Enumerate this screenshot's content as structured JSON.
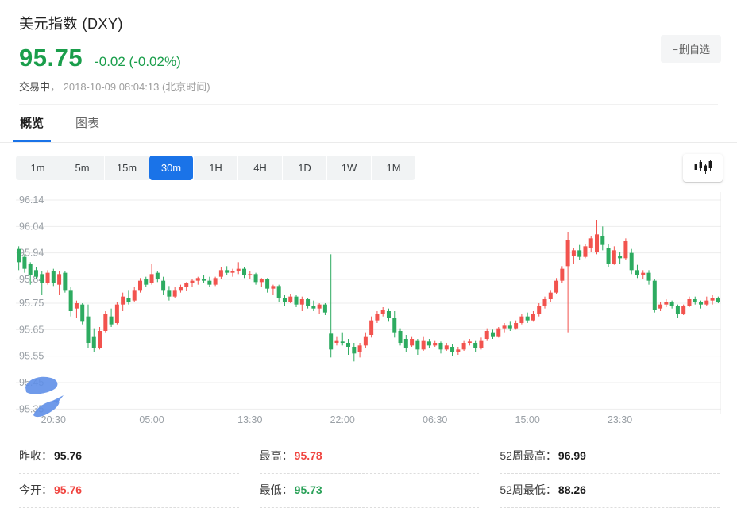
{
  "header": {
    "title": "美元指数 (DXY)",
    "price": "95.75",
    "change": "-0.02 (-0.02%)",
    "status_state": "交易中",
    "status_time": "， 2018-10-09 08:04:13 (北京时间)",
    "watchlist_button": "删自选"
  },
  "icons": {
    "minus": "−",
    "chart_type": "candlestick-chart-icon"
  },
  "tabs": [
    {
      "label": "概览",
      "active": true
    },
    {
      "label": "图表",
      "active": false
    }
  ],
  "toolbar": {
    "intervals": [
      "1m",
      "5m",
      "15m",
      "30m",
      "1H",
      "4H",
      "1D",
      "1W",
      "1M"
    ],
    "active_interval": "30m"
  },
  "stats": {
    "rows": [
      [
        {
          "label": "昨收：",
          "value": "95.76",
          "color": "neutral"
        },
        {
          "label": "最高：",
          "value": "95.78",
          "color": "up"
        },
        {
          "label": "52周最高：",
          "value": "96.99",
          "color": "neutral"
        }
      ],
      [
        {
          "label": "今开：",
          "value": "95.76",
          "color": "up"
        },
        {
          "label": "最低：",
          "value": "95.73",
          "color": "down"
        },
        {
          "label": "52周最低：",
          "value": "88.26",
          "color": "neutral"
        }
      ]
    ]
  },
  "colors": {
    "price_green": "#1a9e4b",
    "accent_blue": "#1a73e8",
    "up_red": "#f2534e",
    "down_green": "#2dab60",
    "grid": "#ededed",
    "axis_text": "#9aa0a6",
    "scribble_blue": "#5f8fe8"
  },
  "chart_data": {
    "type": "candlestick",
    "symbol": "DXY",
    "interval": "30m",
    "y_ticks": [
      96.14,
      96.04,
      95.94,
      95.84,
      95.75,
      95.65,
      95.55,
      95.45,
      95.35
    ],
    "y_range": [
      95.33,
      96.17
    ],
    "x_ticks": [
      {
        "i": 6,
        "label": "20:30"
      },
      {
        "i": 23,
        "label": "05:00"
      },
      {
        "i": 40,
        "label": "13:30"
      },
      {
        "i": 56,
        "label": "22:00"
      },
      {
        "i": 72,
        "label": "06:30"
      },
      {
        "i": 88,
        "label": "15:00"
      },
      {
        "i": 104,
        "label": "23:30"
      }
    ],
    "up_color": "#f2534e",
    "down_color": "#2dab60",
    "candles": [
      [
        95.955,
        95.965,
        95.875,
        95.905
      ],
      [
        95.925,
        95.935,
        95.865,
        95.88
      ],
      [
        95.9,
        95.905,
        95.82,
        95.855
      ],
      [
        95.875,
        95.885,
        95.84,
        95.85
      ],
      [
        95.86,
        95.87,
        95.78,
        95.825
      ],
      [
        95.825,
        95.875,
        95.82,
        95.865
      ],
      [
        95.87,
        95.88,
        95.815,
        95.825
      ],
      [
        95.82,
        95.87,
        95.78,
        95.86
      ],
      [
        95.865,
        95.87,
        95.79,
        95.8
      ],
      [
        95.8,
        95.81,
        95.7,
        95.72
      ],
      [
        95.73,
        95.76,
        95.695,
        95.75
      ],
      [
        95.745,
        95.75,
        95.67,
        95.68
      ],
      [
        95.7,
        95.745,
        95.58,
        95.6
      ],
      [
        95.625,
        95.655,
        95.565,
        95.58
      ],
      [
        95.58,
        95.66,
        95.575,
        95.645
      ],
      [
        95.645,
        95.72,
        95.64,
        95.71
      ],
      [
        95.7,
        95.73,
        95.66,
        95.67
      ],
      [
        95.675,
        95.755,
        95.67,
        95.745
      ],
      [
        95.745,
        95.79,
        95.72,
        95.775
      ],
      [
        95.77,
        95.8,
        95.745,
        95.755
      ],
      [
        95.76,
        95.81,
        95.755,
        95.8
      ],
      [
        95.8,
        95.845,
        95.79,
        95.835
      ],
      [
        95.84,
        95.85,
        95.81,
        95.82
      ],
      [
        95.825,
        95.9,
        95.82,
        95.86
      ],
      [
        95.865,
        95.87,
        95.83,
        95.84
      ],
      [
        95.835,
        95.85,
        95.78,
        95.8
      ],
      [
        95.8,
        95.815,
        95.76,
        95.775
      ],
      [
        95.775,
        95.81,
        95.77,
        95.8
      ],
      [
        95.8,
        95.82,
        95.79,
        95.81
      ],
      [
        95.81,
        95.83,
        95.795,
        95.825
      ],
      [
        95.825,
        95.84,
        95.81,
        95.835
      ],
      [
        95.835,
        95.85,
        95.82,
        95.845
      ],
      [
        95.84,
        95.855,
        95.825,
        95.835
      ],
      [
        95.835,
        95.85,
        95.81,
        95.82
      ],
      [
        95.82,
        95.85,
        95.815,
        95.845
      ],
      [
        95.85,
        95.885,
        95.84,
        95.875
      ],
      [
        95.875,
        95.89,
        95.855,
        95.865
      ],
      [
        95.865,
        95.88,
        95.85,
        95.87
      ],
      [
        95.87,
        95.905,
        95.86,
        95.88
      ],
      [
        95.88,
        95.885,
        95.845,
        95.855
      ],
      [
        95.855,
        95.87,
        95.84,
        95.86
      ],
      [
        95.86,
        95.865,
        95.82,
        95.83
      ],
      [
        95.83,
        95.845,
        95.81,
        95.84
      ],
      [
        95.84,
        95.845,
        95.79,
        95.805
      ],
      [
        95.805,
        95.82,
        95.78,
        95.815
      ],
      [
        95.815,
        95.82,
        95.755,
        95.77
      ],
      [
        95.77,
        95.78,
        95.74,
        95.755
      ],
      [
        95.755,
        95.785,
        95.75,
        95.775
      ],
      [
        95.775,
        95.78,
        95.735,
        95.745
      ],
      [
        95.745,
        95.775,
        95.72,
        95.765
      ],
      [
        95.765,
        95.77,
        95.73,
        95.74
      ],
      [
        95.74,
        95.76,
        95.72,
        95.73
      ],
      [
        95.73,
        95.75,
        95.71,
        95.745
      ],
      [
        95.745,
        95.75,
        95.705,
        95.715
      ],
      [
        95.635,
        95.935,
        95.545,
        95.575
      ],
      [
        95.6,
        95.625,
        95.59,
        95.61
      ],
      [
        95.605,
        95.64,
        95.59,
        95.6
      ],
      [
        95.6,
        95.615,
        95.555,
        95.585
      ],
      [
        95.585,
        95.6,
        95.53,
        95.56
      ],
      [
        95.565,
        95.6,
        95.545,
        95.59
      ],
      [
        95.59,
        95.64,
        95.58,
        95.625
      ],
      [
        95.63,
        95.7,
        95.62,
        95.685
      ],
      [
        95.685,
        95.72,
        95.675,
        95.71
      ],
      [
        95.71,
        95.735,
        95.7,
        95.725
      ],
      [
        95.72,
        95.73,
        95.68,
        95.695
      ],
      [
        95.695,
        95.72,
        95.62,
        95.64
      ],
      [
        95.645,
        95.655,
        95.59,
        95.6
      ],
      [
        95.615,
        95.63,
        95.565,
        95.58
      ],
      [
        95.59,
        95.625,
        95.585,
        95.615
      ],
      [
        95.61,
        95.615,
        95.555,
        95.575
      ],
      [
        95.575,
        95.625,
        95.57,
        95.61
      ],
      [
        95.605,
        95.615,
        95.58,
        95.59
      ],
      [
        95.59,
        95.61,
        95.585,
        95.6
      ],
      [
        95.6,
        95.605,
        95.56,
        95.575
      ],
      [
        95.575,
        95.6,
        95.57,
        95.59
      ],
      [
        95.585,
        95.595,
        95.55,
        95.565
      ],
      [
        95.565,
        95.585,
        95.555,
        95.575
      ],
      [
        95.575,
        95.61,
        95.57,
        95.6
      ],
      [
        95.6,
        95.615,
        95.59,
        95.605
      ],
      [
        95.6,
        95.61,
        95.565,
        95.58
      ],
      [
        95.58,
        95.62,
        95.575,
        95.61
      ],
      [
        95.615,
        95.655,
        95.61,
        95.645
      ],
      [
        95.64,
        95.65,
        95.615,
        95.625
      ],
      [
        95.625,
        95.66,
        95.62,
        95.655
      ],
      [
        95.655,
        95.675,
        95.64,
        95.665
      ],
      [
        95.665,
        95.68,
        95.645,
        95.655
      ],
      [
        95.655,
        95.685,
        95.65,
        95.675
      ],
      [
        95.675,
        95.71,
        95.67,
        95.7
      ],
      [
        95.7,
        95.715,
        95.675,
        95.685
      ],
      [
        95.685,
        95.72,
        95.68,
        95.71
      ],
      [
        95.71,
        95.75,
        95.7,
        95.74
      ],
      [
        95.74,
        95.775,
        95.73,
        95.765
      ],
      [
        95.765,
        95.8,
        95.755,
        95.79
      ],
      [
        95.79,
        95.845,
        95.785,
        95.835
      ],
      [
        95.835,
        95.89,
        95.825,
        95.88
      ],
      [
        95.89,
        96.02,
        95.64,
        95.99
      ],
      [
        95.93,
        95.96,
        95.9,
        95.95
      ],
      [
        95.95,
        95.97,
        95.915,
        95.925
      ],
      [
        95.925,
        95.975,
        95.92,
        95.965
      ],
      [
        95.96,
        96.005,
        95.945,
        95.995
      ],
      [
        95.945,
        96.065,
        95.935,
        96.01
      ],
      [
        96.005,
        96.04,
        95.95,
        95.97
      ],
      [
        95.96,
        95.975,
        95.885,
        95.9
      ],
      [
        95.9,
        95.965,
        95.895,
        95.95
      ],
      [
        95.93,
        95.945,
        95.9,
        95.92
      ],
      [
        95.92,
        95.995,
        95.915,
        95.985
      ],
      [
        95.94,
        95.955,
        95.86,
        95.875
      ],
      [
        95.875,
        95.895,
        95.845,
        95.855
      ],
      [
        95.855,
        95.875,
        95.84,
        95.865
      ],
      [
        95.865,
        95.875,
        95.82,
        95.835
      ],
      [
        95.835,
        95.84,
        95.715,
        95.725
      ],
      [
        95.73,
        95.755,
        95.72,
        95.745
      ],
      [
        95.745,
        95.765,
        95.735,
        95.755
      ],
      [
        95.755,
        95.76,
        95.73,
        95.74
      ],
      [
        95.74,
        95.745,
        95.695,
        95.71
      ],
      [
        95.71,
        95.745,
        95.705,
        95.74
      ],
      [
        95.74,
        95.775,
        95.735,
        95.765
      ],
      [
        95.765,
        95.775,
        95.745,
        95.755
      ],
      [
        95.755,
        95.76,
        95.73,
        95.745
      ],
      [
        95.745,
        95.775,
        95.74,
        95.76
      ],
      [
        95.76,
        95.78,
        95.745,
        95.77
      ],
      [
        95.77,
        95.775,
        95.75,
        95.755
      ]
    ]
  }
}
